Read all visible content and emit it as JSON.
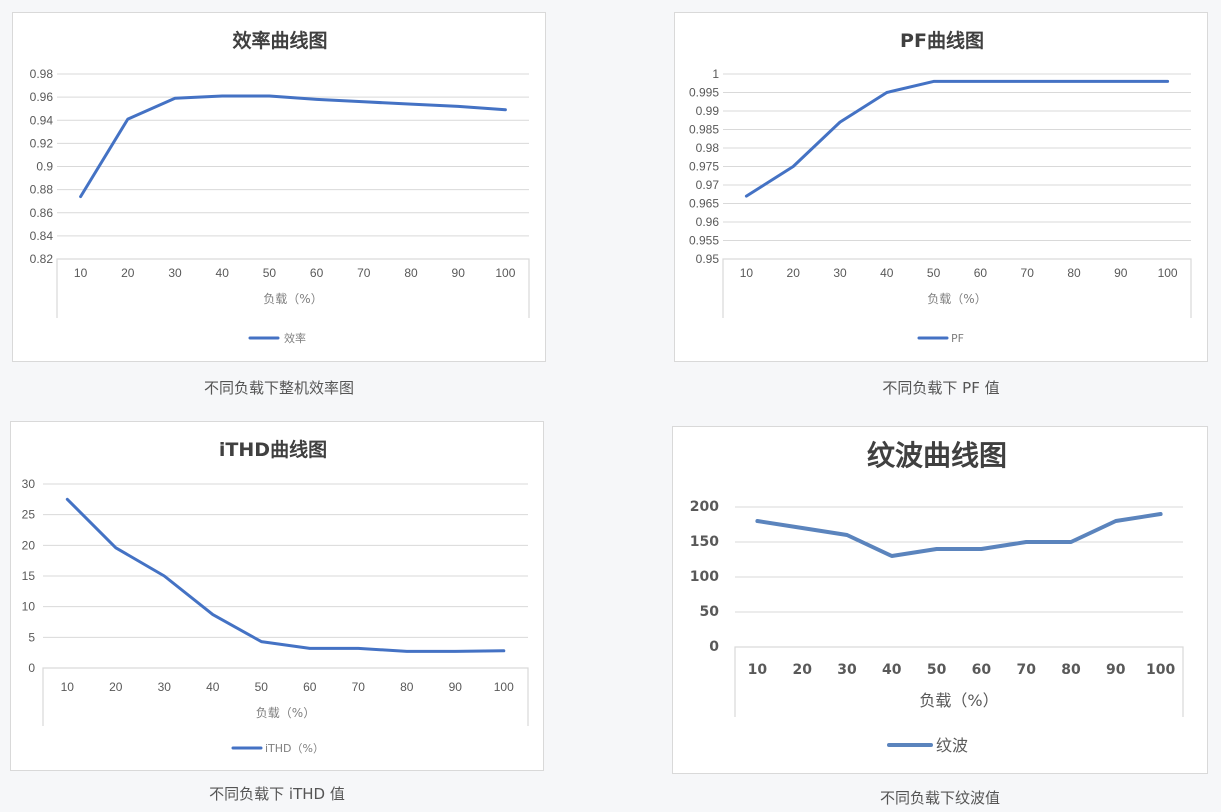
{
  "colors": {
    "line": "#4472c4",
    "line_ripple": "#5b84bd",
    "grid": "#d9d9d9",
    "page_bg": "#f6f7f9"
  },
  "captions": {
    "efficiency": "不同负载下整机效率图",
    "pf": "不同负载下 PF 值",
    "ithd": "不同负载下 iTHD 值",
    "ripple": "不同负载下纹波值"
  },
  "chart_data": [
    {
      "id": "efficiency",
      "type": "line",
      "title": "效率曲线图",
      "xlabel": "负载（%）",
      "ylabel": "",
      "categories": [
        "10",
        "20",
        "30",
        "40",
        "50",
        "60",
        "70",
        "80",
        "90",
        "100"
      ],
      "series": [
        {
          "name": "效率",
          "values": [
            0.874,
            0.941,
            0.959,
            0.961,
            0.961,
            0.958,
            0.956,
            0.954,
            0.952,
            0.949
          ]
        }
      ],
      "ylim": [
        0.82,
        0.98
      ],
      "yticks": [
        "0.82",
        "0.84",
        "0.86",
        "0.88",
        "0.9",
        "0.92",
        "0.94",
        "0.96",
        "0.98"
      ],
      "grid": true,
      "legend_position": "bottom"
    },
    {
      "id": "pf",
      "type": "line",
      "title": "PF曲线图",
      "xlabel": "负载（%）",
      "ylabel": "",
      "categories": [
        "10",
        "20",
        "30",
        "40",
        "50",
        "60",
        "70",
        "80",
        "90",
        "100"
      ],
      "series": [
        {
          "name": "PF",
          "values": [
            0.967,
            0.975,
            0.987,
            0.995,
            0.998,
            0.998,
            0.998,
            0.998,
            0.998,
            0.998
          ]
        }
      ],
      "ylim": [
        0.95,
        1.0
      ],
      "yticks": [
        "0.95",
        "0.955",
        "0.96",
        "0.965",
        "0.97",
        "0.975",
        "0.98",
        "0.985",
        "0.99",
        "0.995",
        "1"
      ],
      "grid": true,
      "legend_position": "bottom"
    },
    {
      "id": "ithd",
      "type": "line",
      "title": "iTHD曲线图",
      "xlabel": "负载（%）",
      "ylabel": "",
      "categories": [
        "10",
        "20",
        "30",
        "40",
        "50",
        "60",
        "70",
        "80",
        "90",
        "100"
      ],
      "series": [
        {
          "name": "iTHD（%）",
          "values": [
            27.5,
            19.6,
            15.0,
            8.7,
            4.3,
            3.2,
            3.2,
            2.7,
            2.7,
            2.8
          ]
        }
      ],
      "ylim": [
        0,
        30
      ],
      "yticks": [
        "0",
        "5",
        "10",
        "15",
        "20",
        "25",
        "30"
      ],
      "grid": true,
      "legend_position": "bottom"
    },
    {
      "id": "ripple",
      "type": "line",
      "title": "纹波曲线图",
      "xlabel": "负载（%）",
      "ylabel": "",
      "categories": [
        "10",
        "20",
        "30",
        "40",
        "50",
        "60",
        "70",
        "80",
        "90",
        "100"
      ],
      "series": [
        {
          "name": "纹波",
          "values": [
            180,
            170,
            160,
            130,
            140,
            140,
            150,
            150,
            180,
            190
          ]
        }
      ],
      "ylim": [
        0,
        200
      ],
      "yticks": [
        "0",
        "50",
        "100",
        "150",
        "200"
      ],
      "grid": true,
      "legend_position": "bottom"
    }
  ]
}
